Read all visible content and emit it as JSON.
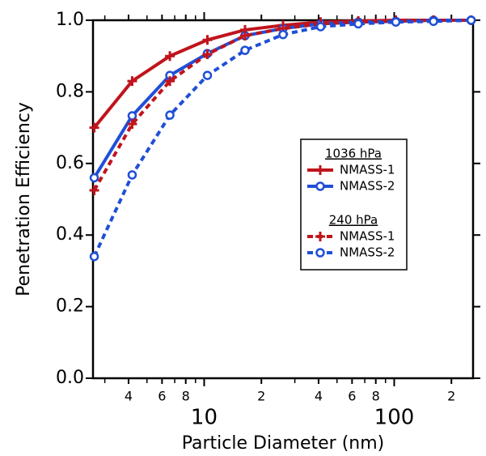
{
  "chart_data": {
    "type": "line",
    "xlabel": "Particle Diameter (nm)",
    "ylabel": "Penetration Efficiency",
    "xscale": "log",
    "xlim": [
      2.6,
      260
    ],
    "ylim": [
      0,
      1
    ],
    "xticks": [
      4,
      6,
      8,
      10,
      {
        "value": 20,
        "label": "2"
      },
      {
        "value": 40,
        "label": "4"
      },
      {
        "value": 60,
        "label": "6"
      },
      {
        "value": 80,
        "label": "8"
      },
      100,
      {
        "value": 200,
        "label": "2"
      }
    ],
    "xminorticks": [
      3,
      5,
      7,
      9,
      30,
      50,
      70,
      90
    ],
    "yticks": [
      {
        "value": 0,
        "label": "0.0"
      },
      0.2,
      0.4,
      0.6,
      0.8,
      {
        "value": 1,
        "label": "1.0"
      }
    ],
    "x": [
      2.64,
      4.18,
      6.6,
      10.4,
      16.4,
      26.0,
      41.0,
      64.7,
      102,
      161,
      254
    ],
    "series": [
      {
        "name": "NMASS-1",
        "group": "1036 hPa",
        "color": "#c0141c",
        "dashed": false,
        "marker": "plus",
        "values": [
          0.7,
          0.83,
          0.9,
          0.945,
          0.973,
          0.986,
          0.995,
          0.998,
          1.0,
          1.0,
          1.0
        ]
      },
      {
        "name": "NMASS-2",
        "group": "1036 hPa",
        "color": "#1f4fd6",
        "dashed": false,
        "marker": "circle",
        "values": [
          0.56,
          0.733,
          0.846,
          0.907,
          0.957,
          0.977,
          0.99,
          0.995,
          0.997,
          1.0,
          1.0
        ]
      },
      {
        "name": "NMASS-1",
        "group": "240 hPa",
        "color": "#c0141c",
        "dashed": true,
        "marker": "plus",
        "values": [
          0.525,
          0.71,
          0.83,
          0.905,
          0.957,
          0.977,
          0.99,
          0.995,
          0.998,
          1.0,
          1.0
        ]
      },
      {
        "name": "NMASS-2",
        "group": "240 hPa",
        "color": "#1f4fd6",
        "dashed": true,
        "marker": "circle",
        "values": [
          0.34,
          0.568,
          0.735,
          0.846,
          0.916,
          0.96,
          0.982,
          0.99,
          0.995,
          0.997,
          1.0
        ]
      }
    ]
  }
}
